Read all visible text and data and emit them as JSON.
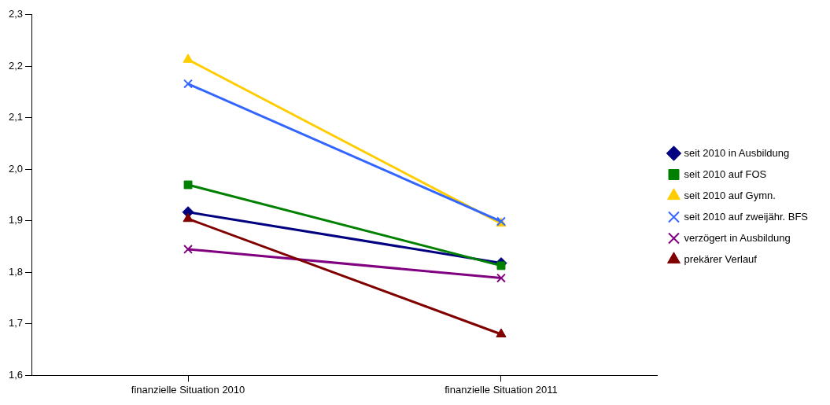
{
  "chart_data": {
    "type": "line",
    "categories": [
      "finanzielle Situation 2010",
      "finanzielle Situation 2011"
    ],
    "series": [
      {
        "name": "seit 2010 in Ausbildung",
        "color": "#000080",
        "marker": "diamond",
        "values": [
          1.917,
          1.818
        ]
      },
      {
        "name": "seit 2010 auf FOS",
        "color": "#008000",
        "marker": "square",
        "values": [
          1.97,
          1.813
        ]
      },
      {
        "name": "seit 2010 auf Gymn.",
        "color": "#ffcc00",
        "marker": "triangle",
        "values": [
          2.213,
          1.895
        ]
      },
      {
        "name": "seit 2010 auf zweijähr. BFS",
        "color": "#3366ff",
        "marker": "cross",
        "values": [
          2.166,
          1.899
        ]
      },
      {
        "name": "verzögert in Ausbildung",
        "color": "#800080",
        "marker": "cross",
        "values": [
          1.845,
          1.789
        ]
      },
      {
        "name": "prekärer Verlauf",
        "color": "#800000",
        "marker": "triangle",
        "values": [
          1.904,
          1.68
        ]
      }
    ],
    "ylim": [
      1.6,
      2.3
    ],
    "yticks": [
      {
        "value": 1.6,
        "label": "1,6"
      },
      {
        "value": 1.7,
        "label": "1,7"
      },
      {
        "value": 1.8,
        "label": "1,8"
      },
      {
        "value": 1.9,
        "label": "1,9"
      },
      {
        "value": 2.0,
        "label": "2,0"
      },
      {
        "value": 2.1,
        "label": "2,1"
      },
      {
        "value": 2.2,
        "label": "2,2"
      },
      {
        "value": 2.3,
        "label": "2,3"
      }
    ],
    "grid": false,
    "legend": "right",
    "line_style": "solid"
  }
}
